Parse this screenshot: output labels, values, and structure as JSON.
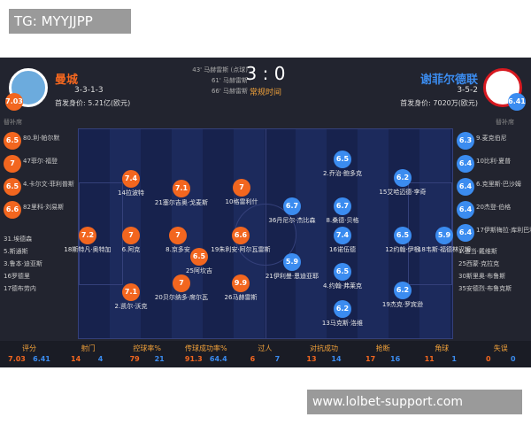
{
  "watermark_top": "TG: MYYJJPP",
  "watermark_bottom": "www.lolbet-support.com",
  "match": {
    "score": "3 : 0",
    "status": "常规时间",
    "goals": [
      "43' 马赫雷斯 (点球)",
      "61' 马赫雷斯",
      "66' 马赫雷斯"
    ]
  },
  "home": {
    "name": "曼城",
    "formation": "3-3-1-3",
    "value": "首发身价: 5.21亿(欧元)",
    "rating": 7.03,
    "bench_label": "替补席",
    "lineup": [
      {
        "rating": 7.2,
        "name": "18斯特凡·奥特加"
      },
      {
        "rating": 7.4,
        "name": "14拉波特"
      },
      {
        "rating": 7,
        "name": "6.阿克"
      },
      {
        "rating": 7.1,
        "name": "2.凯尔·沃克"
      },
      {
        "rating": 7.1,
        "name": "21塞尔吉奥·戈麦斯"
      },
      {
        "rating": 7,
        "name": "8.京多安"
      },
      {
        "rating": 7,
        "name": "20贝尔纳多·席尔瓦"
      },
      {
        "rating": 6.5,
        "name": "25阿坎吉"
      },
      {
        "rating": 6.6,
        "name": "19朱利安·阿尔瓦雷斯"
      },
      {
        "rating": 7,
        "name": "10格雷利什"
      },
      {
        "rating": 9.9,
        "name": "26马赫雷斯"
      }
    ],
    "bench": [
      {
        "rating": 6.5,
        "name": "80.利·帕尔默"
      },
      {
        "rating": 7,
        "name": "47菲尔·福登"
      },
      {
        "rating": 6.5,
        "name": "4.卡尔文·菲利普斯"
      },
      {
        "rating": 6.6,
        "name": "82里科·刘易斯"
      },
      {
        "name": "31.埃德森"
      },
      {
        "name": "5.斯通斯"
      },
      {
        "name": "3.鲁本·迪亚斯"
      },
      {
        "name": "16罗德里"
      },
      {
        "name": "17德布劳内"
      }
    ]
  },
  "away": {
    "name": "谢菲尔德联",
    "formation": "3-5-2",
    "value": "首发身价: 7020万(欧元)",
    "rating": 6.41,
    "bench_label": "替补席",
    "lineup": [
      {
        "rating": 6.7,
        "name": "36丹尼尔·杰比森"
      },
      {
        "rating": 5.9,
        "name": "21伊利曼·恩迪亚耶"
      },
      {
        "rating": 6.5,
        "name": "2.乔治·鲍多克"
      },
      {
        "rating": 6.7,
        "name": "8.桑德·贝格"
      },
      {
        "rating": 7.4,
        "name": "16诺伍德"
      },
      {
        "rating": 6.5,
        "name": "4.约翰·弗莱克"
      },
      {
        "rating": 6.2,
        "name": "13马克斯·洛维"
      },
      {
        "rating": 6.2,
        "name": "15艾哈迈德·李奇"
      },
      {
        "rating": 6.5,
        "name": "12约翰·伊根"
      },
      {
        "rating": 6.2,
        "name": "19杰克·罗宾逊"
      },
      {
        "rating": 5.9,
        "name": "18韦斯·福德林汉姆"
      }
    ],
    "bench": [
      {
        "rating": 6.3,
        "name": "9.麦克伯尼"
      },
      {
        "rating": 6.4,
        "name": "10比利·夏普"
      },
      {
        "rating": 6.4,
        "name": "6.克里斯·巴沙姆"
      },
      {
        "rating": 6.4,
        "name": "20杰登·伯格"
      },
      {
        "rating": 6.4,
        "name": "17伊斯梅拉·库利巴利"
      },
      {
        "name": "1.亚当·戴维斯"
      },
      {
        "name": "25西蒙·克拉克"
      },
      {
        "name": "30斯里奥·布鲁斯"
      },
      {
        "name": "35安德烈·布鲁克斯"
      }
    ]
  },
  "stats": {
    "labels": [
      "评分",
      "射门",
      "控球率%",
      "传球成功率%",
      "过人",
      "对抗成功",
      "抢断",
      "角球",
      "失误"
    ],
    "home": [
      7.03,
      14,
      79,
      91.3,
      6,
      13,
      17,
      11,
      0
    ],
    "away": [
      6.41,
      4,
      21,
      64.4,
      7,
      14,
      16,
      1,
      0
    ]
  }
}
